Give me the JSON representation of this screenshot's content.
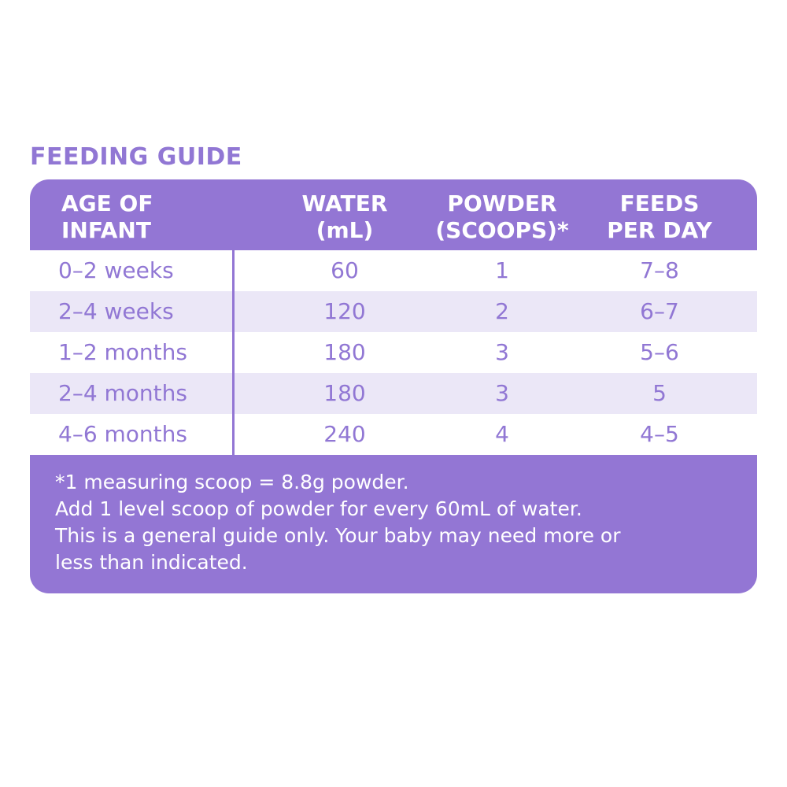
{
  "title": "FEEDING GUIDE",
  "header": {
    "age": [
      "AGE OF",
      "INFANT"
    ],
    "water": [
      "WATER",
      "(mL)"
    ],
    "powder": [
      "POWDER",
      "(SCOOPS)*"
    ],
    "feeds": [
      "FEEDS",
      "PER DAY"
    ]
  },
  "rows": [
    {
      "age": "0–2 weeks",
      "water": "60",
      "powder": "1",
      "feeds": "7–8"
    },
    {
      "age": "2–4 weeks",
      "water": "120",
      "powder": "2",
      "feeds": "6–7"
    },
    {
      "age": "1–2 months",
      "water": "180",
      "powder": "3",
      "feeds": "5–6"
    },
    {
      "age": "2–4 months",
      "water": "180",
      "powder": "3",
      "feeds": "5"
    },
    {
      "age": "4–6 months",
      "water": "240",
      "powder": "4",
      "feeds": "4–5"
    }
  ],
  "notes": [
    "*1 measuring scoop = 8.8g powder.",
    "Add 1 level scoop of powder for every 60mL of water.",
    "This is a general guide only. Your baby may need more or",
    "less than indicated."
  ],
  "colors": {
    "accent": "#9376d4",
    "title": "#9177d4",
    "alt_row": "#ebe7f7"
  }
}
